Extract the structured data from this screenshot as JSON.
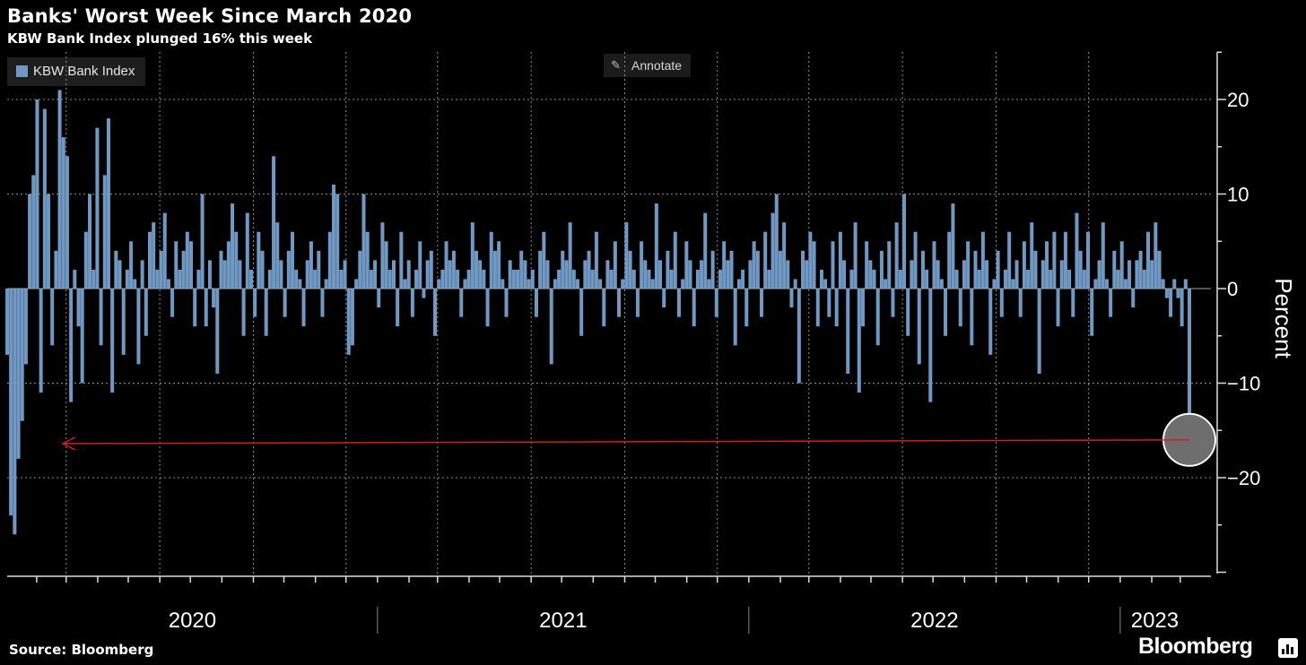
{
  "header": {
    "title": "Banks' Worst Week Since March 2020",
    "subtitle": "KBW Bank Index plunged 16% this week"
  },
  "legend": {
    "label": "KBW Bank Index",
    "color": "#6f98c3"
  },
  "toolbar": {
    "annotate_label": "Annotate",
    "annotate_icon": "pencil-icon"
  },
  "footer": {
    "source": "Source: Bloomberg",
    "brand": "Bloomberg",
    "brand_icon": "bloomberg-chart-icon"
  },
  "chart_data": {
    "type": "bar",
    "ylabel": "Percent",
    "ylim": [
      -30,
      25
    ],
    "yticks": [
      20,
      10,
      0,
      -10,
      -20
    ],
    "year_labels": [
      "2020",
      "2021",
      "2022",
      "2023"
    ],
    "x_start": "2020-01-03",
    "x_end": "2023-03-10",
    "grid": true,
    "bar_color": "#6f98c3",
    "annotation_color": "#d21f1f",
    "highlight": {
      "date": "2023-03-10",
      "value": -16
    },
    "series": [
      {
        "name": "KBW Bank Index",
        "values": [
          -7,
          -24,
          -26,
          -18,
          -14,
          -8,
          10,
          12,
          20,
          -11,
          19,
          10,
          -6,
          4,
          21,
          16,
          14,
          -12,
          2,
          -4,
          -10,
          6,
          10,
          2,
          17,
          -6,
          12,
          18,
          -11,
          4,
          3,
          -7,
          2,
          5,
          1,
          -8,
          3,
          -5,
          6,
          7,
          2,
          4,
          8,
          1,
          -3,
          5,
          2,
          4,
          6,
          5,
          -4,
          2,
          10,
          -4,
          3,
          -2,
          -9,
          4,
          3,
          5,
          9,
          6,
          3,
          -5,
          8,
          2,
          -3,
          6,
          4,
          -5,
          2,
          14,
          7,
          3,
          -3,
          4,
          6,
          2,
          1,
          -4,
          3,
          5,
          2,
          4,
          -3,
          1,
          6,
          11,
          10,
          2,
          3,
          -7,
          -6,
          1,
          4,
          10,
          6,
          2,
          3,
          -2,
          7,
          5,
          2,
          3,
          -4,
          6,
          1,
          3,
          -3,
          2,
          5,
          -1,
          3,
          4,
          -5,
          1,
          2,
          5,
          3,
          4,
          2,
          -3,
          1,
          2,
          7,
          4,
          3,
          2,
          -4,
          6,
          4,
          5,
          1,
          -3,
          3,
          2,
          2,
          4,
          3,
          1,
          2,
          -3,
          4,
          6,
          3,
          -8,
          1,
          2,
          4,
          3,
          7,
          2,
          1,
          -5,
          3,
          4,
          2,
          6,
          1,
          -4,
          3,
          2,
          5,
          -3,
          1,
          7,
          4,
          2,
          -3,
          5,
          3,
          2,
          1,
          9,
          3,
          -2,
          4,
          2,
          6,
          -3,
          1,
          5,
          3,
          -4,
          2,
          3,
          8,
          1,
          4,
          -3,
          2,
          5,
          3,
          4,
          -6,
          1,
          2,
          -4,
          3,
          5,
          4,
          -3,
          6,
          2,
          8,
          10,
          4,
          7,
          3,
          -2,
          1,
          -10,
          4,
          3,
          6,
          5,
          -4,
          2,
          1,
          -3,
          5,
          -4,
          6,
          3,
          -9,
          2,
          7,
          -11,
          -4,
          5,
          3,
          2,
          -6,
          4,
          1,
          5,
          -3,
          7,
          2,
          10,
          -5,
          3,
          6,
          -8,
          4,
          2,
          -12,
          5,
          3,
          1,
          -5,
          6,
          9,
          2,
          -4,
          3,
          5,
          -6,
          4,
          2,
          6,
          3,
          -7,
          1,
          4,
          -3,
          2,
          6,
          1,
          3,
          -3,
          5,
          2,
          7,
          4,
          -9,
          3,
          5,
          2,
          6,
          -4,
          3,
          6,
          2,
          -3,
          8,
          4,
          2,
          6,
          -5,
          1,
          3,
          7,
          1,
          -3,
          4,
          2,
          5,
          1,
          3,
          -2,
          3,
          4,
          2,
          6,
          3,
          7,
          4,
          1,
          -1,
          -3,
          1,
          -1,
          -4,
          1,
          -16
        ]
      }
    ]
  }
}
